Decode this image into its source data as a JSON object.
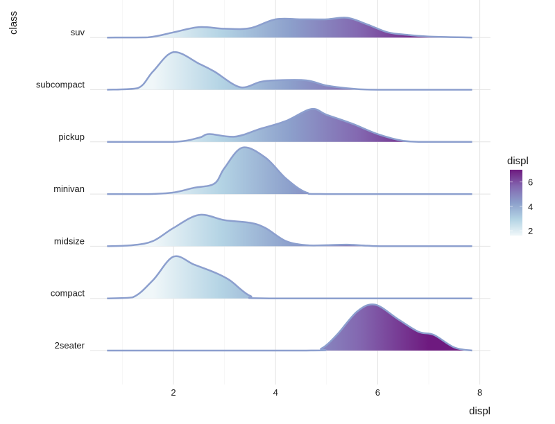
{
  "chart_data": {
    "type": "ridgeline",
    "xlabel": "displ",
    "ylabel": "class",
    "xlim": [
      0.7,
      7.85
    ],
    "x_ticks": [
      2,
      4,
      6,
      8
    ],
    "grid": true,
    "legend": {
      "title": "displ",
      "position": "right",
      "range": [
        1.6,
        7.0
      ],
      "ticks": [
        2,
        4,
        6
      ],
      "colors": [
        "#f0f7f9",
        "#b3d3e4",
        "#8c9fcb",
        "#8367b0",
        "#6e1a7f"
      ]
    },
    "line_color": "#8c9fce",
    "series": [
      {
        "name": "2seater",
        "points": [
          [
            0.7,
            0
          ],
          [
            4.6,
            0
          ],
          [
            4.9,
            0.04
          ],
          [
            5.2,
            0.3
          ],
          [
            5.6,
            0.75
          ],
          [
            5.95,
            0.88
          ],
          [
            6.4,
            0.6
          ],
          [
            6.8,
            0.36
          ],
          [
            7.1,
            0.3
          ],
          [
            7.5,
            0.06
          ],
          [
            7.85,
            0
          ]
        ]
      },
      {
        "name": "compact",
        "points": [
          [
            0.7,
            0
          ],
          [
            1.2,
            0.02
          ],
          [
            1.6,
            0.35
          ],
          [
            2.0,
            0.8
          ],
          [
            2.4,
            0.65
          ],
          [
            2.8,
            0.5
          ],
          [
            3.1,
            0.35
          ],
          [
            3.5,
            0.05
          ],
          [
            3.9,
            0
          ],
          [
            7.85,
            0
          ]
        ]
      },
      {
        "name": "midsize",
        "points": [
          [
            0.7,
            0
          ],
          [
            1.2,
            0.02
          ],
          [
            1.6,
            0.1
          ],
          [
            2.0,
            0.35
          ],
          [
            2.5,
            0.6
          ],
          [
            3.0,
            0.5
          ],
          [
            3.5,
            0.45
          ],
          [
            3.8,
            0.35
          ],
          [
            4.2,
            0.1
          ],
          [
            4.6,
            0.02
          ],
          [
            5.0,
            0.02
          ],
          [
            5.4,
            0.03
          ],
          [
            5.8,
            0.01
          ],
          [
            6.2,
            0
          ],
          [
            7.85,
            0
          ]
        ]
      },
      {
        "name": "minivan",
        "points": [
          [
            0.7,
            0
          ],
          [
            1.5,
            0
          ],
          [
            2.0,
            0.03
          ],
          [
            2.4,
            0.12
          ],
          [
            2.8,
            0.2
          ],
          [
            3.0,
            0.5
          ],
          [
            3.35,
            0.89
          ],
          [
            3.8,
            0.7
          ],
          [
            4.2,
            0.3
          ],
          [
            4.6,
            0.03
          ],
          [
            5.0,
            0
          ],
          [
            7.85,
            0
          ]
        ]
      },
      {
        "name": "pickup",
        "points": [
          [
            0.7,
            0
          ],
          [
            2.0,
            0
          ],
          [
            2.5,
            0.08
          ],
          [
            2.7,
            0.15
          ],
          [
            3.2,
            0.1
          ],
          [
            3.7,
            0.25
          ],
          [
            4.2,
            0.4
          ],
          [
            4.7,
            0.63
          ],
          [
            5.0,
            0.52
          ],
          [
            5.5,
            0.35
          ],
          [
            6.0,
            0.15
          ],
          [
            6.5,
            0.02
          ],
          [
            6.9,
            0
          ],
          [
            7.85,
            0
          ]
        ]
      },
      {
        "name": "subcompact",
        "points": [
          [
            0.7,
            0
          ],
          [
            1.3,
            0.03
          ],
          [
            1.6,
            0.35
          ],
          [
            2.0,
            0.72
          ],
          [
            2.5,
            0.5
          ],
          [
            2.8,
            0.35
          ],
          [
            3.3,
            0.05
          ],
          [
            3.7,
            0.15
          ],
          [
            4.0,
            0.18
          ],
          [
            4.6,
            0.18
          ],
          [
            5.0,
            0.08
          ],
          [
            5.5,
            0.02
          ],
          [
            6.0,
            0
          ],
          [
            7.85,
            0
          ]
        ]
      },
      {
        "name": "suv",
        "points": [
          [
            0.7,
            0
          ],
          [
            1.5,
            0.005
          ],
          [
            2.0,
            0.1
          ],
          [
            2.5,
            0.2
          ],
          [
            3.0,
            0.17
          ],
          [
            3.5,
            0.18
          ],
          [
            4.0,
            0.35
          ],
          [
            4.5,
            0.35
          ],
          [
            5.0,
            0.35
          ],
          [
            5.4,
            0.38
          ],
          [
            5.8,
            0.25
          ],
          [
            6.2,
            0.1
          ],
          [
            6.6,
            0.05
          ],
          [
            7.0,
            0.02
          ],
          [
            7.85,
            0
          ]
        ]
      }
    ]
  }
}
